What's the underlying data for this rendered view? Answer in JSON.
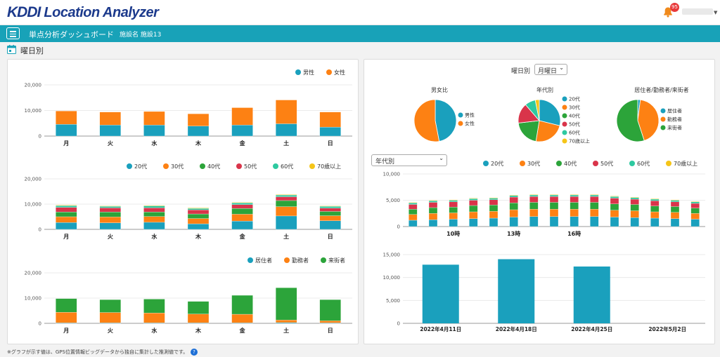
{
  "app": {
    "logo_brand": "KDDI",
    "logo_product": "Location Analyzer",
    "notification_count": "95"
  },
  "navbar": {
    "title": "単点分析ダッシュボード",
    "facility": "施設名 施設13"
  },
  "section": {
    "title": "曜日別"
  },
  "colors": {
    "teal": "#1aa0bd",
    "orange": "#fd8113",
    "green": "#2ca43a",
    "red": "#d9344a",
    "mint": "#2ec9a0",
    "yellow": "#f5c518",
    "nav": "#18a2b8"
  },
  "left_panel": {
    "gender_chart": {
      "legend": [
        "男性",
        "女性"
      ],
      "yticks": [
        "20,000",
        "10,000",
        "0"
      ]
    },
    "age_chart": {
      "legend": [
        "20代",
        "30代",
        "40代",
        "50代",
        "60代",
        "70歳以上"
      ],
      "yticks": [
        "20,000",
        "10,000",
        "0"
      ]
    },
    "residence_chart": {
      "legend": [
        "居住者",
        "勤務者",
        "来街者"
      ],
      "yticks": [
        "20,000",
        "10,000",
        "0"
      ]
    }
  },
  "right_panel": {
    "weekday_label": "曜日別",
    "weekday_select": "月曜日",
    "age_select": "年代別",
    "pie_titles": [
      "男女比",
      "年代別",
      "居住者/勤務者/来街者"
    ],
    "pie_legends": [
      [
        "男性",
        "女性"
      ],
      [
        "20代",
        "30代",
        "40代",
        "50代",
        "60代",
        "70歳以上"
      ],
      [
        "居住者",
        "勤務者",
        "来街者"
      ]
    ],
    "hourly_legend": [
      "20代",
      "30代",
      "40代",
      "50代",
      "60代",
      "70歳以上"
    ],
    "hourly_yticks": [
      "10,000",
      "5,000",
      "0"
    ],
    "hourly_xticks": [
      "10時",
      "13時",
      "16時"
    ],
    "date_yticks": [
      "15,000",
      "10,000",
      "5,000",
      "0"
    ]
  },
  "footnote": "※グラフが示す値は、GPS位置情報ビッグデータから独自に集計した推測値です。",
  "help_icon": "question-circle-icon",
  "chart_data": [
    {
      "type": "bar",
      "stacked": true,
      "categories": [
        "月",
        "火",
        "水",
        "木",
        "金",
        "土",
        "日"
      ],
      "series": [
        {
          "name": "男性",
          "color": "#1aa0bd",
          "values": [
            4600,
            4300,
            4300,
            3900,
            4300,
            4800,
            3500
          ]
        },
        {
          "name": "女性",
          "color": "#fd8113",
          "values": [
            5200,
            5100,
            5300,
            4800,
            6800,
            9300,
            5900
          ]
        }
      ],
      "ylim": [
        0,
        20000
      ],
      "legend": "top-right",
      "grid": true
    },
    {
      "type": "bar",
      "stacked": true,
      "categories": [
        "月",
        "火",
        "水",
        "木",
        "金",
        "土",
        "日"
      ],
      "series": [
        {
          "name": "20代",
          "color": "#1aa0bd",
          "values": [
            2700,
            2600,
            2800,
            2200,
            3300,
            5300,
            3400
          ]
        },
        {
          "name": "30代",
          "color": "#fd8113",
          "values": [
            2300,
            2300,
            2300,
            2100,
            2700,
            3700,
            2000
          ]
        },
        {
          "name": "40代",
          "color": "#2ca43a",
          "values": [
            1900,
            2000,
            1800,
            1800,
            2300,
            2400,
            1700
          ]
        },
        {
          "name": "50代",
          "color": "#d9344a",
          "values": [
            1800,
            1600,
            1600,
            1600,
            1500,
            1500,
            1300
          ]
        },
        {
          "name": "60代",
          "color": "#2ec9a0",
          "values": [
            700,
            600,
            800,
            600,
            700,
            700,
            700
          ]
        },
        {
          "name": "70歳以上",
          "color": "#f5c518",
          "values": [
            200,
            200,
            200,
            200,
            200,
            200,
            200
          ]
        }
      ],
      "ylim": [
        0,
        20000
      ],
      "legend": "top-right",
      "grid": true
    },
    {
      "type": "bar",
      "stacked": true,
      "categories": [
        "月",
        "火",
        "水",
        "木",
        "金",
        "土",
        "日"
      ],
      "series": [
        {
          "name": "居住者",
          "color": "#1aa0bd",
          "values": [
            200,
            200,
            200,
            200,
            200,
            300,
            200
          ]
        },
        {
          "name": "勤務者",
          "color": "#fd8113",
          "values": [
            4200,
            4100,
            3900,
            3500,
            3400,
            1000,
            800
          ]
        },
        {
          "name": "来街者",
          "color": "#2ca43a",
          "values": [
            5400,
            5100,
            5500,
            5000,
            7500,
            12800,
            8400
          ]
        }
      ],
      "ylim": [
        0,
        20000
      ],
      "legend": "top-right",
      "grid": true
    },
    {
      "type": "pie",
      "title": "男女比",
      "labels": [
        "男性",
        "女性"
      ],
      "values": [
        47,
        53
      ],
      "colors": [
        "#1aa0bd",
        "#fd8113"
      ]
    },
    {
      "type": "pie",
      "title": "年代別",
      "labels": [
        "20代",
        "30代",
        "40代",
        "50代",
        "60代",
        "70歳以上"
      ],
      "values": [
        28,
        23,
        20,
        15,
        8,
        3
      ],
      "colors": [
        "#1aa0bd",
        "#fd8113",
        "#2ca43a",
        "#d9344a",
        "#2ec9a0",
        "#f5c518"
      ]
    },
    {
      "type": "pie",
      "title": "居住者/勤務者/来街者",
      "labels": [
        "居住者",
        "勤務者",
        "来街者"
      ],
      "values": [
        2,
        43,
        55
      ],
      "colors": [
        "#1aa0bd",
        "#fd8113",
        "#2ca43a"
      ]
    },
    {
      "type": "bar",
      "stacked": true,
      "x": [
        "8時",
        "9時",
        "10時",
        "11時",
        "12時",
        "13時",
        "14時",
        "15時",
        "16時",
        "17時",
        "18時",
        "19時",
        "20時",
        "21時",
        "22時"
      ],
      "categories": [
        "",
        "",
        "10時",
        "",
        "",
        "13時",
        "",
        "",
        "16時",
        "",
        "",
        "",
        "",
        "",
        ""
      ],
      "series": [
        {
          "name": "20代",
          "color": "#1aa0bd",
          "values": [
            1200,
            1300,
            1400,
            1500,
            1600,
            1800,
            1900,
            1900,
            1900,
            1900,
            1800,
            1700,
            1600,
            1500,
            1400
          ]
        },
        {
          "name": "30代",
          "color": "#fd8113",
          "values": [
            1100,
            1200,
            1200,
            1300,
            1300,
            1400,
            1400,
            1400,
            1400,
            1400,
            1300,
            1300,
            1200,
            1200,
            1100
          ]
        },
        {
          "name": "40代",
          "color": "#2ca43a",
          "values": [
            1000,
            1100,
            1100,
            1200,
            1200,
            1300,
            1300,
            1300,
            1300,
            1300,
            1200,
            1200,
            1100,
            1100,
            1000
          ]
        },
        {
          "name": "50代",
          "color": "#d9344a",
          "values": [
            900,
            1000,
            1000,
            1000,
            1000,
            1100,
            1100,
            1100,
            1100,
            1100,
            1100,
            1000,
            1000,
            900,
            900
          ]
        },
        {
          "name": "60代",
          "color": "#2ec9a0",
          "values": [
            300,
            300,
            300,
            300,
            300,
            300,
            300,
            300,
            300,
            300,
            300,
            300,
            300,
            300,
            300
          ]
        },
        {
          "name": "70歳以上",
          "color": "#f5c518",
          "values": [
            100,
            100,
            100,
            100,
            100,
            100,
            100,
            100,
            100,
            100,
            100,
            100,
            100,
            100,
            100
          ]
        }
      ],
      "ylim": [
        0,
        10000
      ],
      "legend": "top-right",
      "grid": true
    },
    {
      "type": "bar",
      "categories": [
        "2022年4月11日",
        "2022年4月18日",
        "2022年4月25日",
        "2022年5月2日"
      ],
      "values": [
        12800,
        14000,
        12400,
        0
      ],
      "color": "#1aa0bd",
      "ylim": [
        0,
        15000
      ],
      "grid": true
    }
  ]
}
